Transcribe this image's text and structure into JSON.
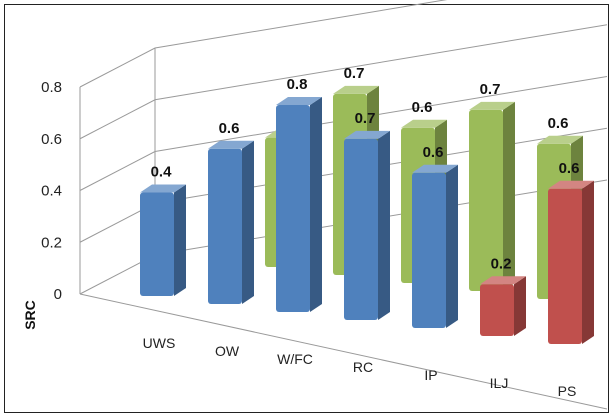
{
  "chart_data": {
    "type": "bar",
    "variant": "3d-column",
    "ylabel": "SRC",
    "ylim": [
      0,
      0.8
    ],
    "yticks": [
      "0",
      "0.2",
      "0.4",
      "0.6",
      "0.8"
    ],
    "grid": true,
    "categories": [
      "UWS",
      "OW",
      "W/FC",
      "RC",
      "IP",
      "ILJ",
      "PS"
    ],
    "series": [
      {
        "color": "#4f81bd",
        "row": "front",
        "values": [
          0.4,
          0.6,
          0.8,
          0.7,
          0.6,
          null,
          null
        ]
      },
      {
        "color": "#9bbb59",
        "row": "back",
        "values": [
          null,
          0.5,
          0.7,
          0.6,
          0.7,
          0.6,
          null
        ]
      },
      {
        "color": "#c0504d",
        "row": "front",
        "values": [
          null,
          null,
          null,
          null,
          null,
          0.2,
          0.6
        ]
      }
    ]
  }
}
